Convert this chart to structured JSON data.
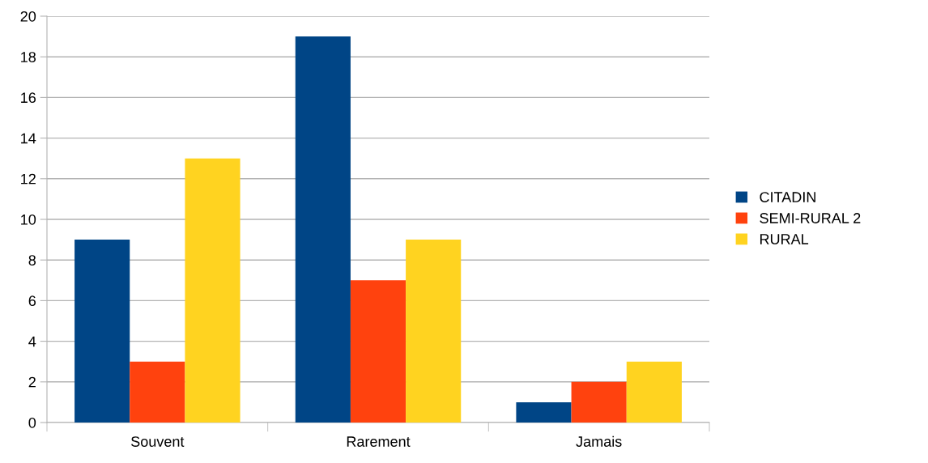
{
  "chart_data": {
    "type": "bar",
    "categories": [
      "Souvent",
      "Rarement",
      "Jamais"
    ],
    "series": [
      {
        "name": "CITADIN",
        "color": "#004586",
        "values": [
          9,
          19,
          1
        ]
      },
      {
        "name": "SEMI-RURAL 2",
        "color": "#ff420e",
        "values": [
          3,
          7,
          2
        ]
      },
      {
        "name": "RURAL",
        "color": "#ffd320",
        "values": [
          13,
          9,
          3
        ]
      }
    ],
    "ylim": [
      0,
      20
    ],
    "yticks": [
      0,
      2,
      4,
      6,
      8,
      10,
      12,
      14,
      16,
      18,
      20
    ],
    "grid": "y",
    "legend": "right"
  }
}
